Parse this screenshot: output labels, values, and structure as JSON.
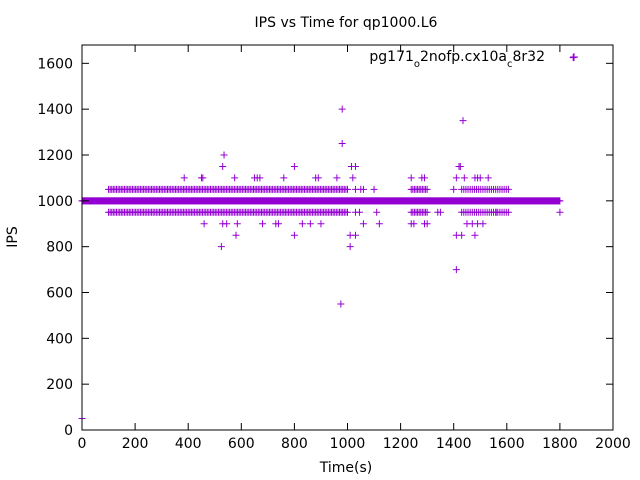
{
  "chart_data": {
    "type": "scatter",
    "title": "IPS vs Time for qp1000.L6",
    "xlabel": "Time(s)",
    "ylabel": "IPS",
    "xlim": [
      0,
      2000
    ],
    "ylim": [
      0,
      1680
    ],
    "xticks": [
      0,
      200,
      400,
      600,
      800,
      1000,
      1200,
      1400,
      1600,
      1800,
      2000
    ],
    "yticks": [
      0,
      200,
      400,
      600,
      800,
      1000,
      1200,
      1400,
      1600
    ],
    "grid": false,
    "legend_position": "top-right",
    "series": [
      {
        "name": "pg171_o2nofp.cx10a_c8r32",
        "legend_parts": [
          {
            "text": "pg171",
            "sub": false
          },
          {
            "text": "o",
            "sub": true
          },
          {
            "text": "2nofp.cx10a",
            "sub": false
          },
          {
            "text": "c",
            "sub": true
          },
          {
            "text": "8r32",
            "sub": false
          }
        ],
        "color": "#9400d3",
        "marker": "plus",
        "baseline": {
          "y": 1000,
          "x_start": 0,
          "x_end": 1800,
          "step": 2
        },
        "bands": [
          {
            "y": 1050,
            "x_start": 100,
            "x_end": 1000,
            "step": 6
          },
          {
            "y": 950,
            "x_start": 100,
            "x_end": 1000,
            "step": 6
          },
          {
            "y": 1050,
            "x_start": 1240,
            "x_end": 1300,
            "step": 6
          },
          {
            "y": 950,
            "x_start": 1240,
            "x_end": 1300,
            "step": 6
          },
          {
            "y": 1050,
            "x_start": 1430,
            "x_end": 1610,
            "step": 8
          },
          {
            "y": 950,
            "x_start": 1430,
            "x_end": 1610,
            "step": 8
          }
        ],
        "points": [
          [
            0,
            50
          ],
          [
            1850,
            1625
          ],
          [
            980,
            1400
          ],
          [
            980,
            1250
          ],
          [
            1435,
            1350
          ],
          [
            535,
            1200
          ],
          [
            530,
            1150
          ],
          [
            800,
            1150
          ],
          [
            1015,
            1150
          ],
          [
            1030,
            1150
          ],
          [
            1420,
            1150
          ],
          [
            1425,
            1150
          ],
          [
            385,
            1100
          ],
          [
            450,
            1100
          ],
          [
            455,
            1100
          ],
          [
            575,
            1100
          ],
          [
            650,
            1100
          ],
          [
            660,
            1100
          ],
          [
            670,
            1100
          ],
          [
            760,
            1100
          ],
          [
            880,
            1100
          ],
          [
            890,
            1100
          ],
          [
            960,
            1100
          ],
          [
            1020,
            1100
          ],
          [
            1240,
            1100
          ],
          [
            1280,
            1100
          ],
          [
            1290,
            1100
          ],
          [
            1410,
            1100
          ],
          [
            1440,
            1100
          ],
          [
            1480,
            1100
          ],
          [
            1490,
            1100
          ],
          [
            1500,
            1100
          ],
          [
            1530,
            1100
          ],
          [
            1030,
            1050
          ],
          [
            1050,
            1050
          ],
          [
            1060,
            1050
          ],
          [
            1100,
            1050
          ],
          [
            1400,
            1050
          ],
          [
            1030,
            950
          ],
          [
            1045,
            950
          ],
          [
            1110,
            950
          ],
          [
            1340,
            950
          ],
          [
            1350,
            950
          ],
          [
            1560,
            950
          ],
          [
            1800,
            950
          ],
          [
            460,
            900
          ],
          [
            530,
            900
          ],
          [
            545,
            900
          ],
          [
            585,
            900
          ],
          [
            680,
            900
          ],
          [
            730,
            900
          ],
          [
            740,
            900
          ],
          [
            830,
            900
          ],
          [
            860,
            900
          ],
          [
            900,
            900
          ],
          [
            1060,
            900
          ],
          [
            1120,
            900
          ],
          [
            1240,
            900
          ],
          [
            1250,
            900
          ],
          [
            1290,
            900
          ],
          [
            1300,
            900
          ],
          [
            1450,
            900
          ],
          [
            1470,
            900
          ],
          [
            1490,
            900
          ],
          [
            1510,
            900
          ],
          [
            580,
            850
          ],
          [
            800,
            850
          ],
          [
            1010,
            850
          ],
          [
            1030,
            850
          ],
          [
            1410,
            850
          ],
          [
            1430,
            850
          ],
          [
            1480,
            850
          ],
          [
            525,
            800
          ],
          [
            1010,
            800
          ],
          [
            1410,
            700
          ],
          [
            975,
            550
          ]
        ]
      }
    ]
  }
}
